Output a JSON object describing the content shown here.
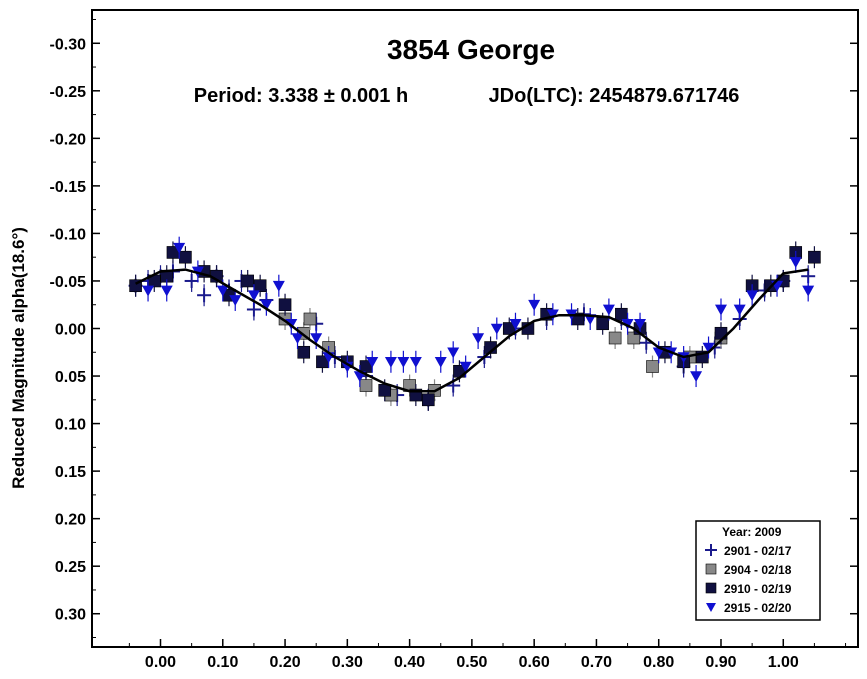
{
  "chart_data": {
    "type": "scatter",
    "title": "3854 George",
    "subtitle_period": "Period: 3.338 ± 0.001 h",
    "subtitle_epoch": "JDo(LTC): 2454879.671746",
    "ylabel": "Reduced Magnitude alpha(18.6°)",
    "xlabel": "",
    "xlim": [
      -0.11,
      1.12
    ],
    "ylim": [
      -0.335,
      0.335
    ],
    "y_inverted": true,
    "grid": false,
    "legend_position": "bottom-right",
    "x_ticks": [
      "0.00",
      "0.10",
      "0.20",
      "0.30",
      "0.40",
      "0.50",
      "0.60",
      "0.70",
      "0.80",
      "0.90",
      "1.00"
    ],
    "y_ticks": [
      "-0.30",
      "-0.25",
      "-0.20",
      "-0.15",
      "-0.10",
      "-0.05",
      "0.00",
      "0.05",
      "0.10",
      "0.15",
      "0.20",
      "0.25",
      "0.30"
    ],
    "legend_title": "Year: 2009",
    "series": [
      {
        "name": "2901 - 02/17",
        "marker": "plus",
        "color": "#1a1a8c",
        "points": [
          [
            -0.04,
            -0.045
          ],
          [
            -0.02,
            -0.05
          ],
          [
            0.0,
            -0.055
          ],
          [
            0.02,
            -0.06
          ],
          [
            0.05,
            -0.05
          ],
          [
            0.07,
            -0.035
          ],
          [
            0.09,
            -0.055
          ],
          [
            0.11,
            -0.04
          ],
          [
            0.13,
            -0.05
          ],
          [
            0.15,
            -0.02
          ],
          [
            0.17,
            -0.03
          ],
          [
            0.25,
            -0.005
          ],
          [
            0.28,
            0.03
          ],
          [
            0.33,
            0.05
          ],
          [
            0.38,
            0.07
          ],
          [
            0.43,
            0.075
          ],
          [
            0.47,
            0.06
          ],
          [
            0.52,
            0.03
          ],
          [
            0.57,
            0.0
          ],
          [
            0.62,
            -0.01
          ],
          [
            0.68,
            -0.015
          ],
          [
            0.74,
            -0.01
          ],
          [
            0.78,
            0.015
          ],
          [
            0.84,
            0.04
          ],
          [
            0.89,
            0.02
          ],
          [
            0.93,
            -0.01
          ],
          [
            0.97,
            -0.04
          ],
          [
            1.0,
            -0.05
          ],
          [
            1.04,
            -0.055
          ]
        ]
      },
      {
        "name": "2904 - 02/18",
        "marker": "square",
        "color": "#888888",
        "points": [
          [
            0.2,
            -0.01
          ],
          [
            0.23,
            0.005
          ],
          [
            0.24,
            -0.01
          ],
          [
            0.27,
            0.02
          ],
          [
            0.33,
            0.06
          ],
          [
            0.37,
            0.07
          ],
          [
            0.4,
            0.06
          ],
          [
            0.44,
            0.065
          ],
          [
            0.73,
            0.01
          ],
          [
            0.76,
            0.01
          ],
          [
            0.79,
            0.04
          ],
          [
            0.85,
            0.03
          ],
          [
            0.9,
            0.01
          ]
        ]
      },
      {
        "name": "2910 - 02/19",
        "marker": "square",
        "color": "#101040",
        "points": [
          [
            -0.04,
            -0.045
          ],
          [
            -0.01,
            -0.05
          ],
          [
            0.01,
            -0.055
          ],
          [
            0.02,
            -0.08
          ],
          [
            0.04,
            -0.075
          ],
          [
            0.07,
            -0.06
          ],
          [
            0.09,
            -0.055
          ],
          [
            0.11,
            -0.035
          ],
          [
            0.14,
            -0.05
          ],
          [
            0.16,
            -0.045
          ],
          [
            0.2,
            -0.025
          ],
          [
            0.23,
            0.025
          ],
          [
            0.26,
            0.035
          ],
          [
            0.3,
            0.035
          ],
          [
            0.33,
            0.04
          ],
          [
            0.36,
            0.065
          ],
          [
            0.41,
            0.07
          ],
          [
            0.43,
            0.075
          ],
          [
            0.48,
            0.045
          ],
          [
            0.53,
            0.02
          ],
          [
            0.56,
            0.0
          ],
          [
            0.59,
            0.0
          ],
          [
            0.62,
            -0.015
          ],
          [
            0.67,
            -0.01
          ],
          [
            0.71,
            -0.005
          ],
          [
            0.74,
            -0.015
          ],
          [
            0.77,
            0.0
          ],
          [
            0.81,
            0.025
          ],
          [
            0.84,
            0.035
          ],
          [
            0.87,
            0.03
          ],
          [
            0.9,
            0.005
          ],
          [
            0.95,
            -0.045
          ],
          [
            0.98,
            -0.045
          ],
          [
            1.0,
            -0.05
          ],
          [
            1.02,
            -0.08
          ],
          [
            1.05,
            -0.075
          ]
        ]
      },
      {
        "name": "2915 - 02/20",
        "marker": "triangle",
        "color": "#1010d0",
        "points": [
          [
            -0.02,
            -0.04
          ],
          [
            0.01,
            -0.04
          ],
          [
            0.03,
            -0.085
          ],
          [
            0.06,
            -0.06
          ],
          [
            0.1,
            -0.04
          ],
          [
            0.12,
            -0.03
          ],
          [
            0.15,
            -0.035
          ],
          [
            0.17,
            -0.025
          ],
          [
            0.19,
            -0.045
          ],
          [
            0.21,
            -0.005
          ],
          [
            0.22,
            0.01
          ],
          [
            0.25,
            0.01
          ],
          [
            0.27,
            0.03
          ],
          [
            0.3,
            0.04
          ],
          [
            0.32,
            0.05
          ],
          [
            0.34,
            0.035
          ],
          [
            0.37,
            0.035
          ],
          [
            0.39,
            0.035
          ],
          [
            0.41,
            0.035
          ],
          [
            0.45,
            0.035
          ],
          [
            0.47,
            0.025
          ],
          [
            0.49,
            0.04
          ],
          [
            0.51,
            0.01
          ],
          [
            0.54,
            0.0
          ],
          [
            0.57,
            -0.005
          ],
          [
            0.6,
            -0.025
          ],
          [
            0.63,
            -0.015
          ],
          [
            0.66,
            -0.015
          ],
          [
            0.69,
            -0.01
          ],
          [
            0.72,
            -0.02
          ],
          [
            0.75,
            -0.005
          ],
          [
            0.77,
            -0.005
          ],
          [
            0.8,
            0.025
          ],
          [
            0.82,
            0.025
          ],
          [
            0.84,
            0.03
          ],
          [
            0.86,
            0.05
          ],
          [
            0.88,
            0.02
          ],
          [
            0.9,
            -0.02
          ],
          [
            0.93,
            -0.02
          ],
          [
            0.95,
            -0.035
          ],
          [
            0.99,
            -0.045
          ],
          [
            1.02,
            -0.07
          ],
          [
            1.04,
            -0.04
          ]
        ]
      }
    ],
    "fit_curve": {
      "color": "#000000",
      "x": [
        -0.04,
        0.0,
        0.04,
        0.08,
        0.12,
        0.16,
        0.2,
        0.24,
        0.28,
        0.32,
        0.36,
        0.4,
        0.44,
        0.48,
        0.52,
        0.56,
        0.6,
        0.64,
        0.68,
        0.72,
        0.76,
        0.8,
        0.84,
        0.88,
        0.92,
        0.96,
        1.0,
        1.04
      ],
      "y": [
        -0.047,
        -0.06,
        -0.062,
        -0.055,
        -0.04,
        -0.025,
        -0.008,
        0.012,
        0.03,
        0.045,
        0.058,
        0.066,
        0.066,
        0.052,
        0.03,
        0.008,
        -0.008,
        -0.014,
        -0.014,
        -0.012,
        0.0,
        0.02,
        0.03,
        0.025,
        0.0,
        -0.03,
        -0.058,
        -0.062
      ]
    }
  }
}
